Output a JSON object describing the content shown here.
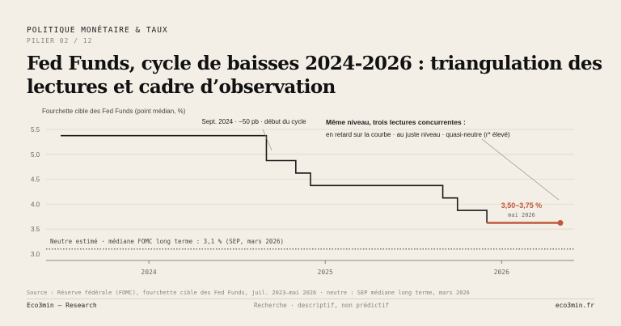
{
  "header": {
    "kicker": "POLITIQUE MONÉTAIRE & TAUX",
    "pillar": "PILIER 02 / 12",
    "title": "Fed Funds, cycle de baisses 2024-2026 : triangulation des lectures et cadre d’observation"
  },
  "chart_data": {
    "type": "line",
    "step": true,
    "ylabel": "Fourchette cible des Fed Funds (point médian, %)",
    "xlabel": "",
    "ylim": [
      3.0,
      5.5
    ],
    "yticks": [
      3.0,
      3.5,
      4.0,
      4.5,
      5.0,
      5.5
    ],
    "xlim": [
      "2023-07",
      "2026-05"
    ],
    "xticks": [
      {
        "label": "2024",
        "date": "2024-01"
      },
      {
        "label": "2025",
        "date": "2025-01"
      },
      {
        "label": "2026",
        "date": "2026-01"
      }
    ],
    "grid": "horizontal",
    "series": [
      {
        "color": "#1c1c1c",
        "points": [
          {
            "date": "2023-07",
            "value": 5.375
          },
          {
            "date": "2024-09",
            "value": 5.375
          },
          {
            "date": "2024-09",
            "value": 4.875
          },
          {
            "date": "2024-11",
            "value": 4.875
          },
          {
            "date": "2024-11",
            "value": 4.625
          },
          {
            "date": "2024-12",
            "value": 4.625
          },
          {
            "date": "2024-12",
            "value": 4.375
          },
          {
            "date": "2025-09",
            "value": 4.375
          },
          {
            "date": "2025-09",
            "value": 4.125
          },
          {
            "date": "2025-10",
            "value": 4.125
          },
          {
            "date": "2025-10",
            "value": 3.875
          },
          {
            "date": "2025-12",
            "value": 3.875
          },
          {
            "date": "2025-12",
            "value": 3.625
          }
        ]
      },
      {
        "color": "#c0593a",
        "points": [
          {
            "date": "2025-12",
            "value": 3.625
          },
          {
            "date": "2026-05",
            "value": 3.625
          }
        ]
      }
    ],
    "reference_line": {
      "value": 3.1,
      "label": "Neutre estimé · médiane FOMC long terme : 3,1 % (SEP, mars 2026)"
    },
    "annotations": {
      "cycle_start": "Sept. 2024 · −50 pb · début du cycle",
      "current_value": "3,50–3,75 %",
      "current_date": "mai 2026",
      "readings_title": "Même niveau, trois lectures concurrentes :",
      "readings_detail": "en retard sur la courbe · au juste niveau · quasi-neutre (r* élevé)"
    },
    "colors": {
      "line": "#1c1c1c",
      "accent": "#c0593a",
      "grid": "#ddd6c9",
      "axis_text": "#6b665e"
    }
  },
  "footer": {
    "source": "Source : Réserve fédérale (FOMC), fourchette cible des Fed Funds, juil. 2023–mai 2026 · neutre : SEP médiane long terme, mars 2026",
    "brand": "Eco3min — Research",
    "note": "Recherche · descriptif, non prédictif",
    "site": "eco3min.fr"
  }
}
